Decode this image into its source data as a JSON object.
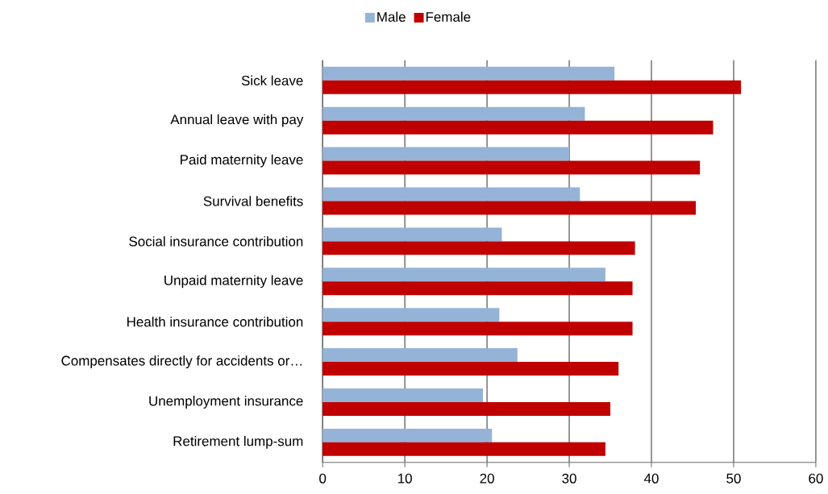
{
  "chart_data": {
    "type": "bar",
    "orientation": "horizontal",
    "categories": [
      "Sick leave",
      "Annual leave with pay",
      "Paid maternity leave",
      "Survival benefits",
      "Social insurance contribution",
      "Unpaid maternity leave",
      "Health insurance contribution",
      "Compensates directly for accidents or…",
      "Unemployment insurance",
      "Retirement lump-sum"
    ],
    "series": [
      {
        "name": "Male",
        "color": "#95b3d7",
        "values": [
          35.5,
          31.9,
          30.0,
          31.3,
          21.8,
          34.4,
          21.5,
          23.7,
          19.5,
          20.6
        ]
      },
      {
        "name": "Female",
        "color": "#c00000",
        "values": [
          50.9,
          47.5,
          45.9,
          45.4,
          38.0,
          37.7,
          37.7,
          36.0,
          35.0,
          34.4
        ]
      }
    ],
    "xlim": [
      0,
      60
    ],
    "xticks": [
      0,
      10,
      20,
      30,
      40,
      50,
      60
    ],
    "grid": "x",
    "legend": "top"
  }
}
